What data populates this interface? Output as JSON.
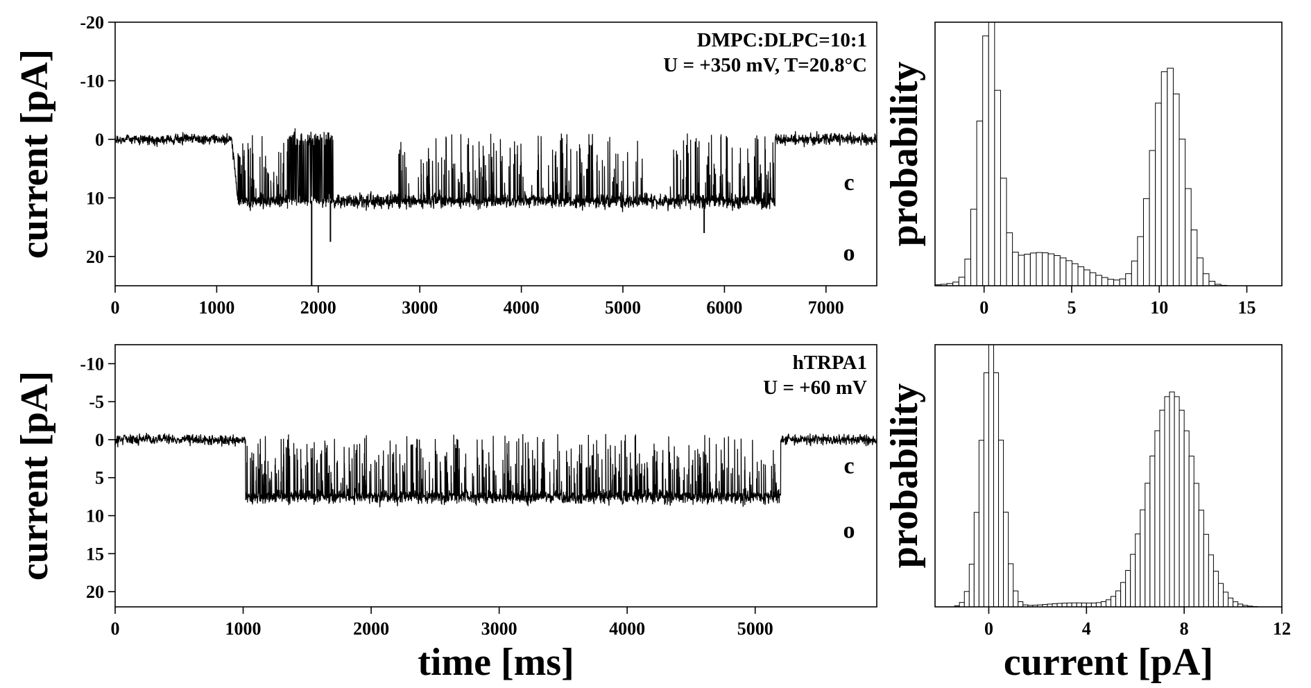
{
  "chart_data": [
    {
      "id": "trace-top",
      "type": "line",
      "title": "",
      "annotation_lines": [
        "DMPC:DLPC=10:1",
        "U = +350 mV, T=20.8°C"
      ],
      "xlabel": "",
      "ylabel": "current [pA]",
      "xlim": [
        0,
        7500
      ],
      "ylim": [
        -20,
        25
      ],
      "y_inverted": true,
      "x_ticks": [
        0,
        1000,
        2000,
        3000,
        4000,
        5000,
        6000,
        7000
      ],
      "y_ticks": [
        -20,
        -10,
        0,
        10,
        20
      ],
      "state_labels": [
        {
          "text": "c",
          "y": 7.5
        },
        {
          "text": "o",
          "y": 19.5
        }
      ],
      "closed_level": 0,
      "open_level": 10.5,
      "segments": [
        {
          "start": 0,
          "end": 1150,
          "mode": "closed"
        },
        {
          "start": 1150,
          "end": 1210,
          "mode": "transition"
        },
        {
          "start": 1210,
          "end": 1700,
          "mode": "flicker"
        },
        {
          "start": 1700,
          "end": 2150,
          "mode": "burst"
        },
        {
          "start": 2150,
          "end": 2770,
          "mode": "open"
        },
        {
          "start": 2770,
          "end": 5200,
          "mode": "flicker"
        },
        {
          "start": 5200,
          "end": 5430,
          "mode": "open"
        },
        {
          "start": 5430,
          "end": 6500,
          "mode": "flicker"
        },
        {
          "start": 6500,
          "end": 7500,
          "mode": "closed"
        }
      ],
      "spikes": [
        {
          "x": 1935,
          "y": 25
        },
        {
          "x": 2120,
          "y": 17.5
        },
        {
          "x": 5800,
          "y": 16
        }
      ]
    },
    {
      "id": "hist-top",
      "type": "bar",
      "title": "",
      "xlabel": "",
      "ylabel": "probability",
      "xlim": [
        -2.8,
        17
      ],
      "bin_width": 0.34,
      "x_ticks": [
        0,
        5,
        10,
        15
      ],
      "peaks": [
        {
          "center": 0.3,
          "height": 1.0,
          "sigma": 0.55
        },
        {
          "center": 10.5,
          "height": 0.86,
          "sigma": 0.9
        },
        {
          "center": 3.2,
          "height": 0.13,
          "sigma": 2.2
        }
      ]
    },
    {
      "id": "trace-bottom",
      "type": "line",
      "title": "",
      "annotation_lines": [
        "hTRPA1",
        "U = +60 mV"
      ],
      "xlabel": "time [ms]",
      "ylabel": "current [pA]",
      "xlim": [
        0,
        5950
      ],
      "ylim": [
        -12.5,
        22
      ],
      "y_inverted": true,
      "x_ticks": [
        0,
        1000,
        2000,
        3000,
        4000,
        5000
      ],
      "y_ticks": [
        -10,
        -5,
        0,
        5,
        10,
        15,
        20
      ],
      "state_labels": [
        {
          "text": "c",
          "y": 3.5
        },
        {
          "text": "o",
          "y": 12
        }
      ],
      "closed_level": 0,
      "open_level": 7.5,
      "segments": [
        {
          "start": 0,
          "end": 1020,
          "mode": "closed"
        },
        {
          "start": 1020,
          "end": 5200,
          "mode": "flicker"
        },
        {
          "start": 5200,
          "end": 5950,
          "mode": "closed"
        }
      ],
      "spikes": []
    },
    {
      "id": "hist-bottom",
      "type": "bar",
      "title": "",
      "xlabel": "current [pA]",
      "ylabel": "probability",
      "xlim": [
        -2.2,
        12
      ],
      "bin_width": 0.2,
      "x_ticks": [
        0,
        4,
        8,
        12
      ],
      "peaks": [
        {
          "center": 0.1,
          "height": 1.0,
          "sigma": 0.42
        },
        {
          "center": 7.5,
          "height": 0.82,
          "sigma": 0.95
        },
        {
          "center": 3.5,
          "height": 0.015,
          "sigma": 1.2
        }
      ]
    }
  ]
}
